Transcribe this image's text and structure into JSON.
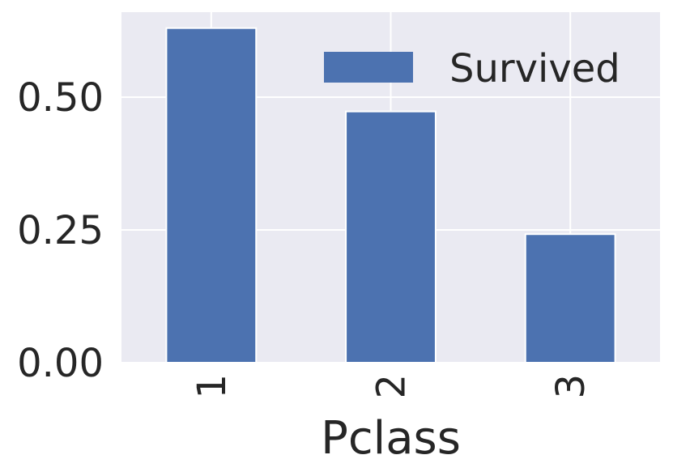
{
  "colors": {
    "plot_background": "#eaeaf2",
    "grid": "#ffffff",
    "bar": "#4c72b0",
    "text": "#262626"
  },
  "chart_data": {
    "type": "bar",
    "categories": [
      "1",
      "2",
      "3"
    ],
    "series": [
      {
        "name": "Survived",
        "values": [
          0.63,
          0.473,
          0.242
        ]
      }
    ],
    "xlabel": "Pclass",
    "ylabel": "",
    "ylim": [
      0,
      0.66
    ],
    "yticks": [
      "0.00",
      "0.25",
      "0.50"
    ],
    "ytick_values": [
      0,
      0.25,
      0.5
    ],
    "xtick_rotation": 90,
    "grid": true,
    "legend": {
      "placement": "top-right"
    }
  }
}
